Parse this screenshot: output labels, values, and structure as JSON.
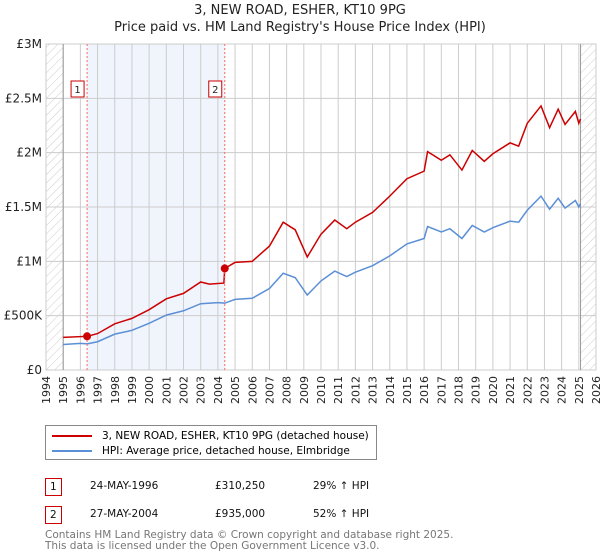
{
  "chart_data": {
    "type": "line",
    "title": "3, NEW ROAD, ESHER, KT10 9PG",
    "subtitle": "Price paid vs. HM Land Registry's House Price Index (HPI)",
    "xlim": [
      1994,
      2026
    ],
    "ylim": [
      0,
      3000000
    ],
    "x_ticks": [
      "1994",
      "1995",
      "1996",
      "1997",
      "1998",
      "1999",
      "2000",
      "2001",
      "2002",
      "2003",
      "2004",
      "2005",
      "2006",
      "2007",
      "2008",
      "2009",
      "2010",
      "2011",
      "2012",
      "2013",
      "2014",
      "2015",
      "2016",
      "2017",
      "2018",
      "2019",
      "2020",
      "2021",
      "2022",
      "2023",
      "2024",
      "2025",
      "2026"
    ],
    "y_ticks": [
      {
        "v": 0,
        "label": "£0"
      },
      {
        "v": 500000,
        "label": "£500K"
      },
      {
        "v": 1000000,
        "label": "£1M"
      },
      {
        "v": 1500000,
        "label": "£1.5M"
      },
      {
        "v": 2000000,
        "label": "£2M"
      },
      {
        "v": 2500000,
        "label": "£2.5M"
      },
      {
        "v": 3000000,
        "label": "£3M"
      }
    ],
    "grid": true,
    "series": [
      {
        "name": "3, NEW ROAD, ESHER, KT10 9PG (detached house)",
        "color": "#cc0000",
        "x": [
          1995,
          1996.4,
          1997,
          1998,
          1999,
          2000,
          2001,
          2002,
          2003,
          2003.5,
          2004.35,
          2004.4,
          2005,
          2006,
          2007,
          2007.8,
          2008.5,
          2009.2,
          2010,
          2010.8,
          2011.5,
          2012,
          2013,
          2014,
          2015,
          2016,
          2016.2,
          2017,
          2017.5,
          2018.2,
          2018.8,
          2019.5,
          2020,
          2021,
          2021.5,
          2022,
          2022.8,
          2023.3,
          2023.8,
          2024.2,
          2024.8,
          2025,
          2025.1
        ],
        "y": [
          300000,
          310000,
          335000,
          425000,
          475000,
          555000,
          655000,
          705000,
          810000,
          790000,
          800000,
          935000,
          990000,
          1000000,
          1140000,
          1360000,
          1290000,
          1040000,
          1250000,
          1380000,
          1300000,
          1360000,
          1450000,
          1600000,
          1760000,
          1830000,
          2010000,
          1930000,
          1980000,
          1840000,
          2020000,
          1920000,
          1990000,
          2090000,
          2060000,
          2270000,
          2430000,
          2230000,
          2400000,
          2260000,
          2380000,
          2270000,
          2310000
        ]
      },
      {
        "name": "HPI: Average price, detached house, Elmbridge",
        "color": "#5b8fd6",
        "x": [
          1995,
          1996,
          1996.4,
          1997,
          1998,
          1999,
          2000,
          2001,
          2002,
          2003,
          2004,
          2004.4,
          2005,
          2006,
          2007,
          2007.8,
          2008.5,
          2009.2,
          2010,
          2010.8,
          2011.5,
          2012,
          2013,
          2014,
          2015,
          2016,
          2016.2,
          2017,
          2017.5,
          2018.2,
          2018.8,
          2019.5,
          2020,
          2021,
          2021.5,
          2022,
          2022.8,
          2023.3,
          2023.8,
          2024.2,
          2024.8,
          2025,
          2025.1
        ],
        "y": [
          235000,
          245000,
          240000,
          260000,
          330000,
          365000,
          430000,
          505000,
          545000,
          610000,
          620000,
          615000,
          650000,
          660000,
          750000,
          890000,
          850000,
          690000,
          820000,
          910000,
          860000,
          900000,
          960000,
          1050000,
          1160000,
          1210000,
          1320000,
          1270000,
          1300000,
          1210000,
          1330000,
          1270000,
          1310000,
          1370000,
          1360000,
          1470000,
          1600000,
          1480000,
          1580000,
          1490000,
          1560000,
          1500000,
          1530000
        ]
      }
    ],
    "sales": [
      {
        "n": "1",
        "x": 1996.39,
        "y": 310250,
        "date": "24-MAY-1996",
        "price": "£310,250",
        "hpi": "29% ↑ HPI"
      },
      {
        "n": "2",
        "x": 2004.4,
        "y": 935000,
        "date": "27-MAY-2004",
        "price": "£935,000",
        "hpi": "52% ↑ HPI"
      }
    ],
    "data_start": 1995,
    "data_end": 2025.1
  },
  "footer": {
    "line1": "Contains HM Land Registry data © Crown copyright and database right 2025.",
    "line2": "This data is licensed under the Open Government Licence v3.0."
  }
}
